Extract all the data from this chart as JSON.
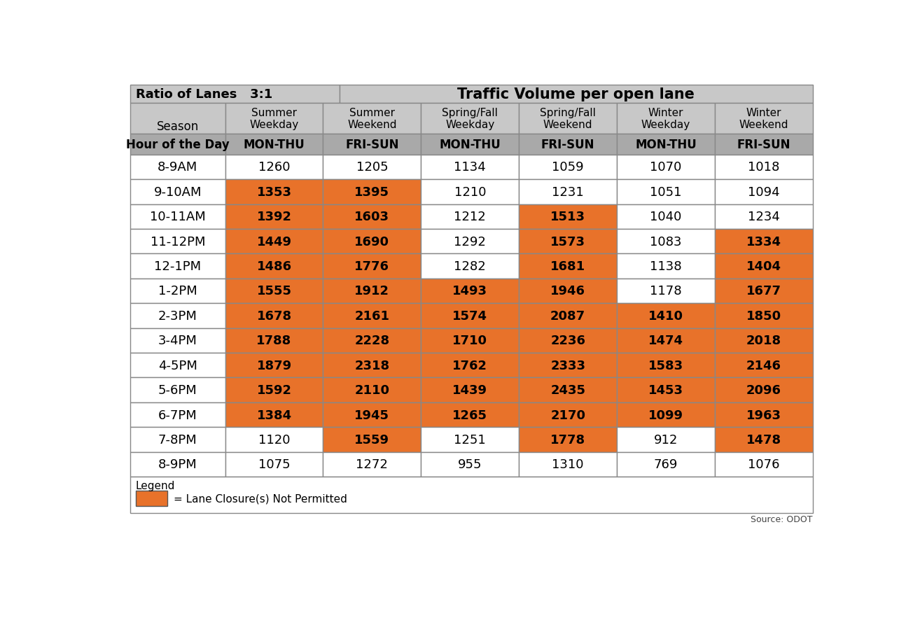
{
  "title_left": "Ratio of Lanes   3:1",
  "title_right": "Traffic Volume per open lane",
  "seasons": [
    "Summer\nWeekday",
    "Summer\nWeekend",
    "Spring/Fall\nWeekday",
    "Spring/Fall\nWeekend",
    "Winter\nWeekday",
    "Winter\nWeekend"
  ],
  "day_labels": [
    "MON-THU",
    "FRI-SUN",
    "MON-THU",
    "FRI-SUN",
    "MON-THU",
    "FRI-SUN"
  ],
  "rows": [
    [
      "8-9AM",
      "1260",
      "1205",
      "1134",
      "1059",
      "1070",
      "1018"
    ],
    [
      "9-10AM",
      "1353",
      "1395",
      "1210",
      "1231",
      "1051",
      "1094"
    ],
    [
      "10-11AM",
      "1392",
      "1603",
      "1212",
      "1513",
      "1040",
      "1234"
    ],
    [
      "11-12PM",
      "1449",
      "1690",
      "1292",
      "1573",
      "1083",
      "1334"
    ],
    [
      "12-1PM",
      "1486",
      "1776",
      "1282",
      "1681",
      "1138",
      "1404"
    ],
    [
      "1-2PM",
      "1555",
      "1912",
      "1493",
      "1946",
      "1178",
      "1677"
    ],
    [
      "2-3PM",
      "1678",
      "2161",
      "1574",
      "2087",
      "1410",
      "1850"
    ],
    [
      "3-4PM",
      "1788",
      "2228",
      "1710",
      "2236",
      "1474",
      "2018"
    ],
    [
      "4-5PM",
      "1879",
      "2318",
      "1762",
      "2333",
      "1583",
      "2146"
    ],
    [
      "5-6PM",
      "1592",
      "2110",
      "1439",
      "2435",
      "1453",
      "2096"
    ],
    [
      "6-7PM",
      "1384",
      "1945",
      "1265",
      "2170",
      "1099",
      "1963"
    ],
    [
      "7-8PM",
      "1120",
      "1559",
      "1251",
      "1778",
      "912",
      "1478"
    ],
    [
      "8-9PM",
      "1075",
      "1272",
      "955",
      "1310",
      "769",
      "1076"
    ]
  ],
  "orange_cells": [
    [
      1,
      [
        1,
        2
      ]
    ],
    [
      2,
      [
        1,
        2,
        4
      ]
    ],
    [
      3,
      [
        1,
        2,
        4,
        6
      ]
    ],
    [
      4,
      [
        1,
        2,
        4,
        6
      ]
    ],
    [
      5,
      [
        1,
        2,
        3,
        4,
        6
      ]
    ],
    [
      6,
      [
        1,
        2,
        3,
        4,
        5,
        6
      ]
    ],
    [
      7,
      [
        1,
        2,
        3,
        4,
        5,
        6
      ]
    ],
    [
      8,
      [
        1,
        2,
        3,
        4,
        5,
        6
      ]
    ],
    [
      9,
      [
        1,
        2,
        3,
        4,
        5,
        6
      ]
    ],
    [
      10,
      [
        1,
        2,
        3,
        4,
        5,
        6
      ]
    ],
    [
      11,
      [
        2,
        4,
        6
      ]
    ],
    [
      12,
      []
    ]
  ],
  "orange_color": "#E8722A",
  "header_bg": "#C8C8C8",
  "hour_header_bg": "#A9A9A9",
  "white_bg": "#FFFFFF",
  "border_color": "#888888",
  "legend_text": "= Lane Closure(s) Not Permitted",
  "source_text": "Source: ODOT"
}
